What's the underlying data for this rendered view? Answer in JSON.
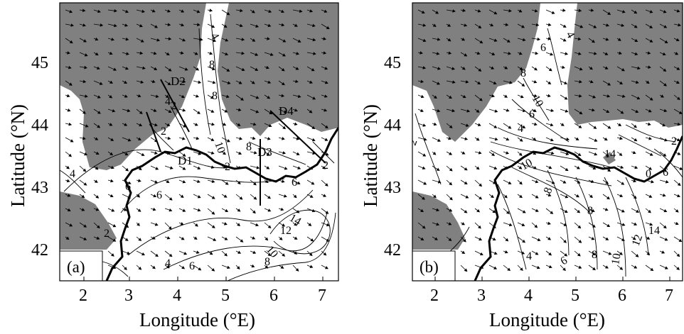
{
  "panels": [
    {
      "id": "a",
      "label": "(a)",
      "xlabel": "Longitude (°E)",
      "ylabel": "Latitude (°N)",
      "xticks": [
        "2",
        "3",
        "4",
        "5",
        "6",
        "7"
      ],
      "yticks": [
        "45",
        "44",
        "43",
        "42"
      ],
      "contour_labels": [
        "4",
        "8",
        "8",
        "2",
        "4",
        "2",
        "10",
        "4",
        "6",
        "8",
        "2",
        "6",
        "2",
        "6",
        "14",
        "12",
        "10",
        "8",
        "6",
        "4",
        "2"
      ],
      "sections": [
        "D1",
        "D2",
        "D3",
        "D4"
      ]
    },
    {
      "id": "b",
      "label": "(b)",
      "xlabel": "Longitude (°E)",
      "ylabel": "Latitude (°N)",
      "xticks": [
        "2",
        "3",
        "4",
        "5",
        "6",
        "7"
      ],
      "yticks": [
        "45",
        "44",
        "43",
        "42"
      ],
      "contour_labels": [
        "4",
        "6",
        "8",
        "10",
        "6",
        "2",
        "4",
        "14",
        "2",
        "10",
        "8",
        "8",
        "0",
        "6",
        "14",
        "12",
        "4",
        "6",
        "8",
        "10"
      ]
    }
  ],
  "colors": {
    "land": "#808080",
    "sea": "#ffffff",
    "coast": "#000000",
    "contour": "#000000"
  }
}
